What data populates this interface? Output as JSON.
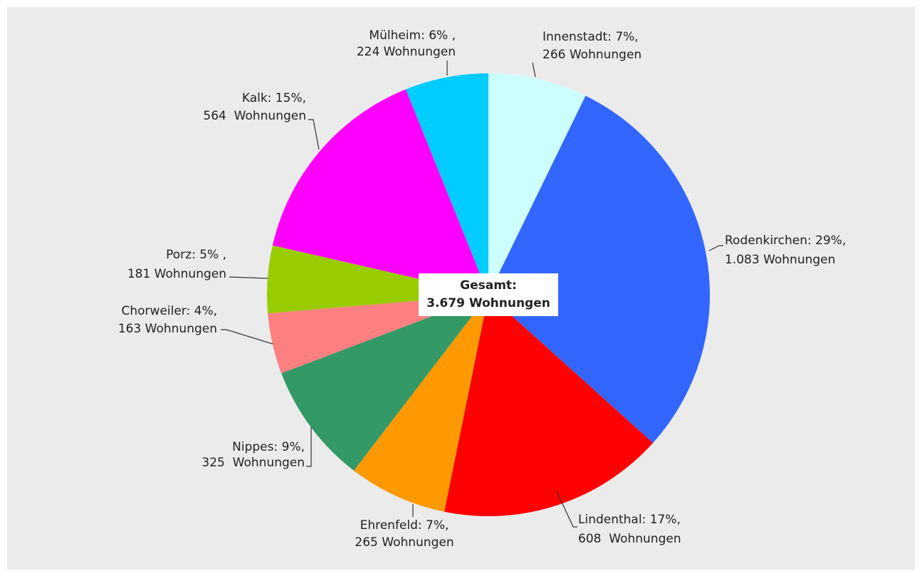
{
  "chart_data": {
    "type": "pie",
    "labels": [
      "Innenstadt: 7%,",
      "Rodenkirchen: 29%,",
      "Lindenthal: 17%,",
      "Ehrenfeld: 7%,",
      "Nippes: 9%,",
      "Chorweiler: 4%,",
      "Porz: 5% ,",
      "Kalk: 15%,",
      "Mülheim: 6% ,"
    ],
    "values": [
      266,
      1083,
      608,
      265,
      325,
      163,
      181,
      564,
      224
    ],
    "value_labels": [
      "266 Wohnungen",
      "1.083 Wohnungen",
      "608  Wohnungen",
      "265 Wohnungen",
      "325  Wohnungen",
      "163 Wohnungen",
      "181 Wohnungen",
      "564  Wohnungen",
      "224 Wohnungen"
    ],
    "colors": [
      "#ccffff",
      "#3366ff",
      "#ff0000",
      "#ff9900",
      "#339966",
      "#ff8080",
      "#99cc00",
      "#ff00ff",
      "#00ccff"
    ],
    "total_title": "Gesamt:",
    "total": 3679,
    "total_label": "3.679 Wohnungen"
  }
}
